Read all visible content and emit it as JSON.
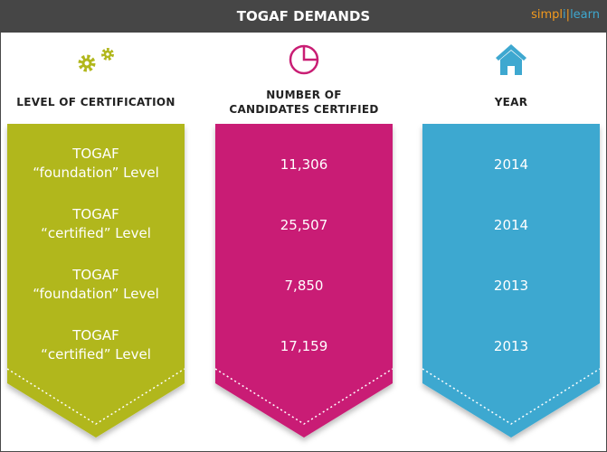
{
  "header": {
    "title": "TOGAF DEMANDS",
    "logo_text": "simplilearn"
  },
  "colors": {
    "header": "#464646",
    "green": "#b1b71c",
    "pink": "#c91e74",
    "blue": "#3ea8d0",
    "logo_orange": "#f39a1e"
  },
  "columns": [
    {
      "heading": "LEVEL OF CERTIFICATION",
      "icon": "gears-icon",
      "rows": [
        "TOGAF\n“foundation” Level",
        "TOGAF\n“certified” Level",
        "TOGAF\n“foundation” Level",
        "TOGAF\n“certified” Level"
      ]
    },
    {
      "heading": "NUMBER OF\nCANDIDATES CERTIFIED",
      "icon": "pie-chart-icon",
      "rows": [
        "11,306",
        "25,507",
        "7,850",
        "17,159"
      ]
    },
    {
      "heading": "YEAR",
      "icon": "house-icon",
      "rows": [
        "2014",
        "2014",
        "2013",
        "2013"
      ]
    }
  ]
}
